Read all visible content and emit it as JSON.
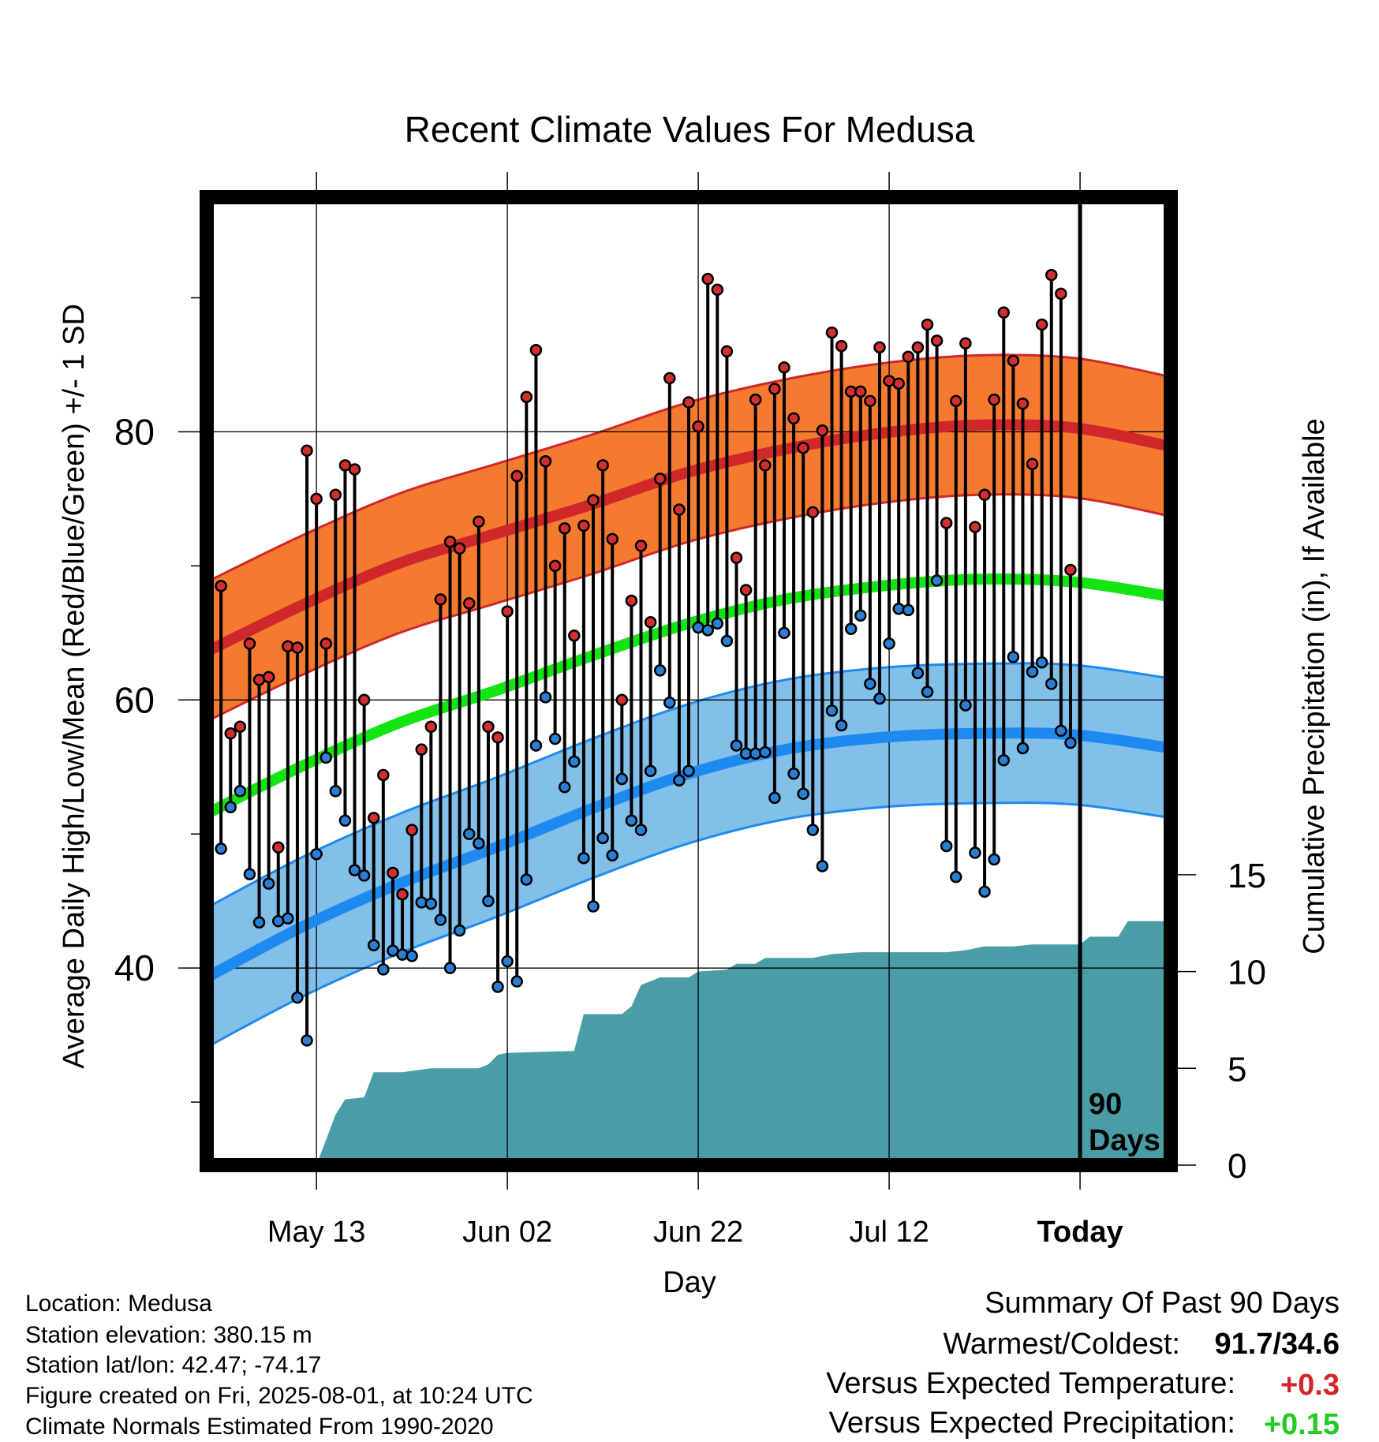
{
  "chart_data": {
    "type": "line",
    "title": "Recent Climate Values For Medusa",
    "xlabel": "Day",
    "ylabel": "Average Daily High/Low/Mean (Red/Blue/Green) +/- 1 SD",
    "y2label": "Cumulative Precipitation (in), If Available",
    "x_tick_labels": [
      "May 13",
      "Jun 02",
      "Jun 22",
      "Jul 12",
      "Today"
    ],
    "y_ticks": [
      40,
      60,
      80
    ],
    "y2_ticks": [
      0,
      5,
      10,
      15
    ],
    "ylim": [
      25.3,
      97.5
    ],
    "y2lim": [
      0,
      50
    ],
    "xlim": [
      -11.5,
      89.5
    ],
    "today_label": "90\nDays",
    "days": 90,
    "grid": true,
    "normals": {
      "high_mean": [
        63.6,
        67.1,
        70.2,
        72.4,
        74.6,
        77.0,
        78.7,
        79.9,
        80.5,
        80.3,
        78.9
      ],
      "high_sd": 5.2,
      "low_mean": [
        39.3,
        43.1,
        46.3,
        49.0,
        51.9,
        54.5,
        56.3,
        57.2,
        57.5,
        57.4,
        56.4
      ],
      "low_sd": 5.2,
      "mean": [
        51.5,
        55.1,
        58.3,
        60.7,
        63.3,
        65.7,
        67.5,
        68.5,
        69.0,
        68.8,
        67.7
      ]
    },
    "series": [
      {
        "name": "High",
        "values": [
          68.5,
          57.5,
          58.0,
          64.2,
          61.5,
          61.7,
          49.0,
          64.0,
          63.9,
          78.6,
          75.0,
          64.2,
          75.3,
          77.5,
          77.2,
          60.0,
          51.2,
          54.4,
          47.1,
          45.5,
          50.3,
          56.3,
          58.0,
          67.5,
          71.8,
          71.3,
          67.2,
          73.3,
          58.0,
          57.2,
          66.6,
          76.7,
          82.6,
          86.1,
          77.8,
          70.0,
          72.8,
          64.8,
          73.0,
          74.9,
          77.5,
          72.0,
          60.0,
          67.4,
          71.5,
          65.8,
          76.5,
          84.0,
          74.2,
          82.2,
          80.4,
          91.4,
          90.6,
          86.0,
          70.6,
          68.2,
          82.4,
          77.5,
          83.2,
          84.8,
          81.0,
          78.8,
          74.0,
          80.1,
          87.4,
          86.4,
          83.0,
          83.0,
          82.3,
          86.3,
          83.8,
          83.6,
          85.6,
          86.3,
          88.0,
          86.8,
          73.2,
          82.3,
          86.6,
          72.9,
          75.3,
          82.4,
          88.9,
          85.3,
          82.1,
          77.6,
          88.0,
          91.7,
          90.3,
          69.7
        ]
      },
      {
        "name": "Low",
        "values": [
          48.9,
          52.0,
          53.2,
          47.0,
          43.4,
          46.3,
          43.5,
          43.7,
          37.8,
          34.6,
          48.5,
          55.7,
          53.2,
          51.0,
          47.3,
          46.9,
          41.7,
          39.9,
          41.3,
          41.0,
          40.9,
          44.9,
          44.8,
          43.6,
          40.0,
          42.8,
          50.0,
          49.3,
          45.0,
          38.6,
          40.5,
          39.0,
          46.6,
          56.6,
          60.2,
          57.1,
          53.5,
          55.4,
          48.2,
          44.6,
          49.7,
          48.4,
          54.1,
          51.0,
          50.3,
          54.7,
          62.2,
          59.8,
          54.0,
          54.7,
          65.4,
          65.2,
          65.7,
          64.4,
          56.6,
          56.0,
          56.0,
          56.1,
          52.7,
          65.0,
          54.5,
          53.0,
          50.3,
          47.6,
          59.2,
          58.1,
          65.3,
          66.3,
          61.2,
          60.1,
          64.2,
          66.8,
          66.7,
          62.0,
          60.6,
          68.9,
          49.1,
          46.8,
          59.6,
          48.6,
          45.7,
          48.1,
          55.5,
          63.2,
          56.4,
          62.1,
          62.8,
          61.2,
          57.7,
          56.8
        ]
      }
    ],
    "precip_cumulative": [
      [
        0,
        0.0
      ],
      [
        2,
        2.6
      ],
      [
        3,
        3.4
      ],
      [
        5,
        3.5
      ],
      [
        6,
        4.8
      ],
      [
        9,
        4.8
      ],
      [
        12,
        5.0
      ],
      [
        17,
        5.0
      ],
      [
        18,
        5.2
      ],
      [
        19,
        5.7
      ],
      [
        20,
        5.8
      ],
      [
        27,
        5.9
      ],
      [
        28,
        7.8
      ],
      [
        32,
        7.8
      ],
      [
        33,
        8.2
      ],
      [
        34,
        9.3
      ],
      [
        35,
        9.5
      ],
      [
        36,
        9.7
      ],
      [
        39,
        9.7
      ],
      [
        40,
        10.0
      ],
      [
        43,
        10.1
      ],
      [
        44,
        10.4
      ],
      [
        46,
        10.4
      ],
      [
        47,
        10.7
      ],
      [
        52,
        10.7
      ],
      [
        54,
        10.9
      ],
      [
        57,
        11.0
      ],
      [
        66,
        11.0
      ],
      [
        68,
        11.1
      ],
      [
        70,
        11.3
      ],
      [
        73,
        11.3
      ],
      [
        75,
        11.4
      ],
      [
        80,
        11.4
      ],
      [
        81,
        11.8
      ],
      [
        84,
        11.8
      ],
      [
        85,
        12.6
      ],
      [
        90,
        12.6
      ]
    ]
  },
  "info": {
    "location": "Location: Medusa",
    "elevation": "Station elevation: 380.15 m",
    "latlon": "Station lat/lon: 42.47; -74.17",
    "created": "Figure created on Fri, 2025-08-01, at 10:24 UTC",
    "normals": "Climate Normals Estimated From 1990-2020"
  },
  "summary": {
    "title": "Summary Of Past 90 Days",
    "warmest_label": "Warmest/Coldest:",
    "warmest_value": "91.7/34.6",
    "temp_label": "Versus Expected Temperature:",
    "temp_value": "+0.3",
    "precip_label": "Versus Expected Precipitation:",
    "precip_value": "+0.15"
  },
  "colors": {
    "high_band": "#F47A30",
    "high_line": "#D0282A",
    "low_band": "#82BFE9",
    "low_line": "#1E8AF0",
    "mean_line": "#12E512",
    "precip": "#4A9CA6",
    "high_dot": "#D32F2F",
    "low_dot": "#2A7FD4",
    "temp_value": "#D0282A",
    "precip_value": "#22CC22"
  }
}
